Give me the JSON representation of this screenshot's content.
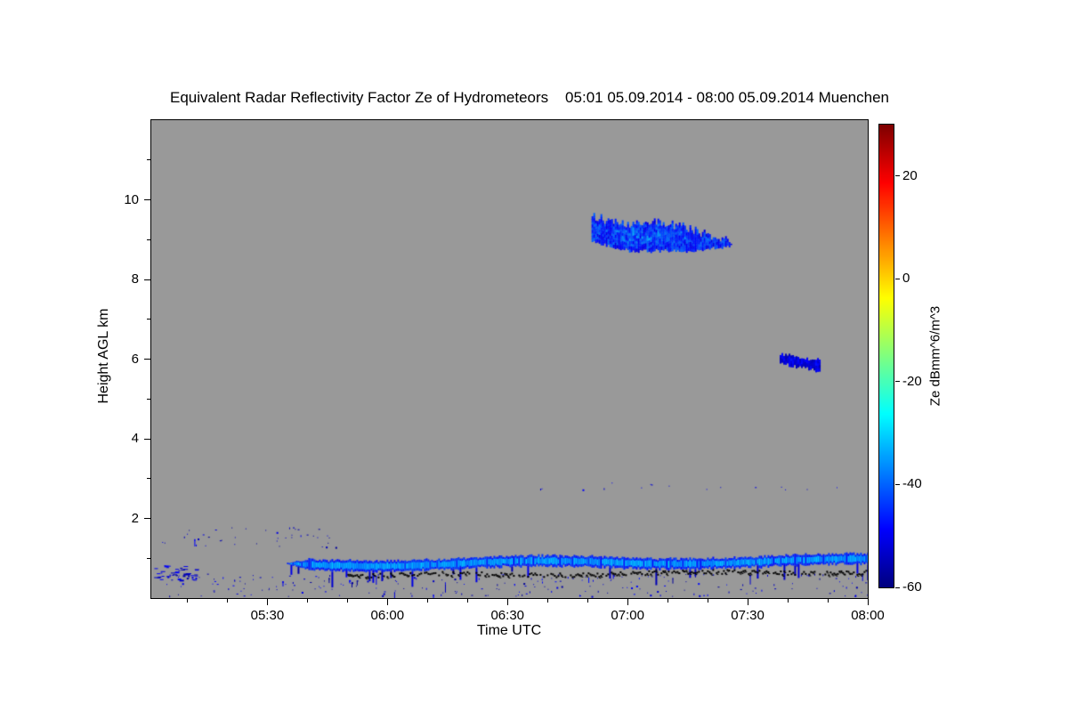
{
  "chart_data": {
    "type": "heatmap",
    "title": "Equivalent Radar Reflectivity Factor Ze of Hydrometeors    05:01 05.09.2014 - 08:00 05.09.2014 Muenchen",
    "title_main": "Equivalent Radar Reflectivity Factor Ze of Hydrometeors",
    "time_period": "05:01 05.09.2014 - 08:00 05.09.2014",
    "station": "Muenchen",
    "xlabel": "Time UTC",
    "ylabel": "Height AGL km",
    "plot_bg": "#999999",
    "x_axis": {
      "range_minutes": [
        301,
        480
      ],
      "major_ticks": [
        {
          "label": "05:30",
          "minutes": 330
        },
        {
          "label": "06:00",
          "minutes": 360
        },
        {
          "label": "06:30",
          "minutes": 390
        },
        {
          "label": "07:00",
          "minutes": 420
        },
        {
          "label": "07:30",
          "minutes": 450
        },
        {
          "label": "08:00",
          "minutes": 480
        }
      ],
      "minor_step_minutes": 10
    },
    "y_axis": {
      "range_km": [
        0,
        12
      ],
      "major_ticks": [
        2,
        4,
        6,
        8,
        10
      ],
      "minor_step_km": 1
    },
    "colorbar": {
      "label": "Ze dBmm^6/m^3",
      "ticks": [
        20,
        0,
        -20,
        -40,
        -60
      ],
      "range": [
        -60,
        30
      ],
      "colormap": "jet"
    },
    "features": [
      {
        "kind": "speckles",
        "name": "near-surface-noise-speckles",
        "t0": 301,
        "t1": 480,
        "h0": 0.05,
        "h1": 0.62,
        "count": 240,
        "ze_min": -58,
        "ze_max": -47
      },
      {
        "kind": "speckles",
        "name": "early-morning-low-speckles",
        "t0": 302,
        "t1": 350,
        "h0": 1.25,
        "h1": 1.78,
        "count": 42,
        "ze_min": -58,
        "ze_max": -49
      },
      {
        "kind": "speckles",
        "name": "left-edge-echo-patch",
        "t0": 301,
        "t1": 312,
        "h0": 0.45,
        "h1": 0.82,
        "count": 46,
        "ze_min": -57,
        "ze_max": -48,
        "dash": true
      },
      {
        "kind": "speckles",
        "name": "mid-level-specks",
        "t0": 393,
        "t1": 473,
        "h0": 2.72,
        "h1": 2.9,
        "count": 16,
        "ze_min": -55,
        "ze_max": -48
      },
      {
        "kind": "band",
        "name": "boundary-layer-echo-band",
        "t0": 334,
        "t1": 480,
        "center_km": 0.84,
        "rise_km": 0.1,
        "halfwidth_km": 0.13,
        "ze_min": -48,
        "ze_max": -31,
        "streak_prob": 0.06
      },
      {
        "kind": "black_line",
        "name": "surface-clutter-line",
        "t0": 350,
        "t1": 480,
        "center_km": 0.58,
        "rise_km": 0.1,
        "jitter_km": 0.1
      },
      {
        "kind": "cloud",
        "name": "cirrus-cloud-layer",
        "t0": 411,
        "t1": 446,
        "top_profile": [
          9.6,
          9.42,
          9.38,
          9.45,
          9.3,
          9.12,
          9.0
        ],
        "base_profile": [
          8.98,
          8.78,
          8.72,
          8.74,
          8.72,
          8.78,
          8.87
        ],
        "top_jitter": 0.12,
        "base_jitter": 0.05,
        "ze_min": -52,
        "ze_max": -40,
        "bright": 9
      },
      {
        "kind": "cloud",
        "name": "mid-level-cloud-patch",
        "t0": 458,
        "t1": 468,
        "top_profile": [
          6.12,
          6.08,
          6.03,
          5.97
        ],
        "base_profile": [
          5.93,
          5.84,
          5.8,
          5.66
        ],
        "top_jitter": 0.06,
        "base_jitter": 0.05,
        "ze_min": -56,
        "ze_max": -47,
        "bright": 0
      }
    ]
  }
}
